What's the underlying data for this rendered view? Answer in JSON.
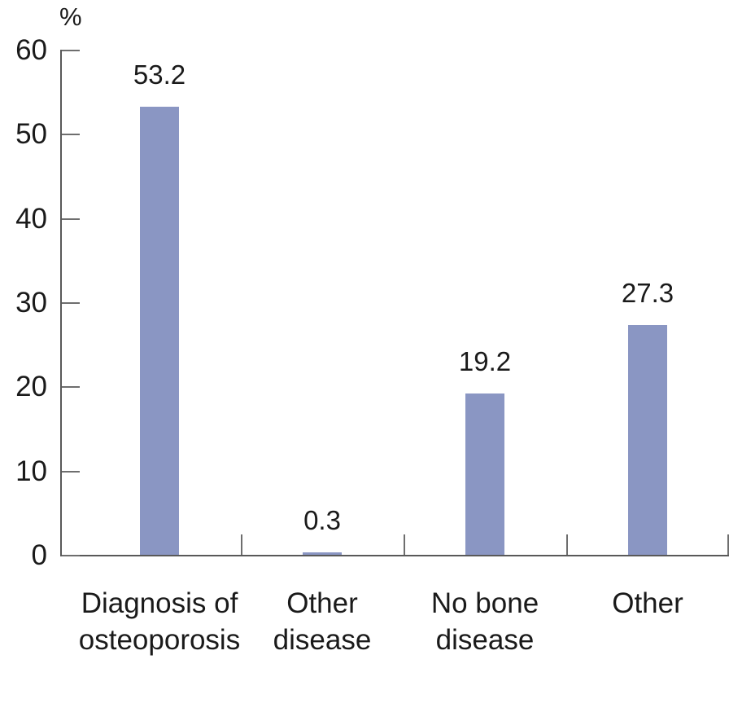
{
  "chart_data": {
    "type": "bar",
    "title": "",
    "unit_label": "%",
    "categories": [
      "Diagnosis of\nosteoporosis",
      "Other\ndisease",
      "No bone\ndisease",
      "Other"
    ],
    "values": [
      53.2,
      0.3,
      19.2,
      27.3
    ],
    "value_labels": [
      "53.2",
      "0.3",
      "19.2",
      "27.3"
    ],
    "y_axis": {
      "min": 0,
      "max": 60,
      "tick_step": 10,
      "tick_labels": [
        "0",
        "10",
        "20",
        "30",
        "40",
        "50",
        "60"
      ]
    },
    "xlabel": "",
    "ylabel": "%",
    "grid": false,
    "legend": false,
    "colors": {
      "bar_fill": "#8a96c3",
      "axis_line": "#595959",
      "tick_mark": "#6e6e6e",
      "text": "#1a1a1a",
      "background": "#ffffff"
    }
  }
}
